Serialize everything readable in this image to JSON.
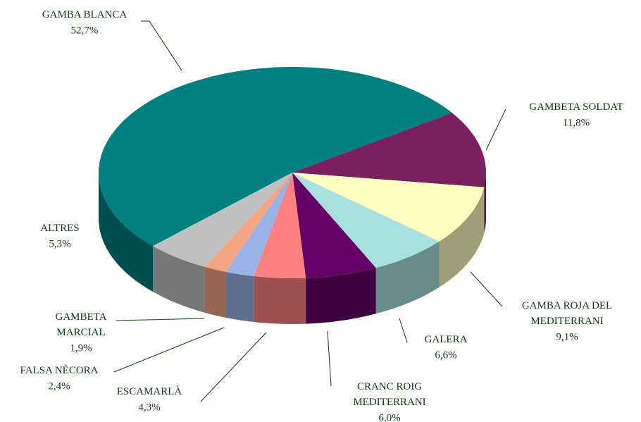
{
  "chart_data": {
    "type": "pie3d",
    "categories": [
      "GAMBA BLANCA",
      "GAMBETA SOLDAT",
      "GAMBA ROJA DEL MEDITERRANI",
      "GALERA",
      "CRANC ROIG MEDITERRANI",
      "ESCAMARLÀ",
      "FALSA NÈCORA",
      "GAMBETA MARCIAL",
      "ALTRES"
    ],
    "values": [
      52.7,
      11.8,
      9.1,
      6.6,
      6.0,
      4.3,
      2.4,
      1.9,
      5.3
    ],
    "value_labels": [
      "52,7%",
      "11,8%",
      "9,1%",
      "6,6%",
      "6,0%",
      "4,3%",
      "2,4%",
      "1,9%",
      "5,3%"
    ],
    "colors": [
      "#008080",
      "#7b1f5e",
      "#ffffc0",
      "#a8e0e0",
      "#660066",
      "#ff8080",
      "#99b3e6",
      "#f4a582",
      "#c0c0c0"
    ]
  }
}
